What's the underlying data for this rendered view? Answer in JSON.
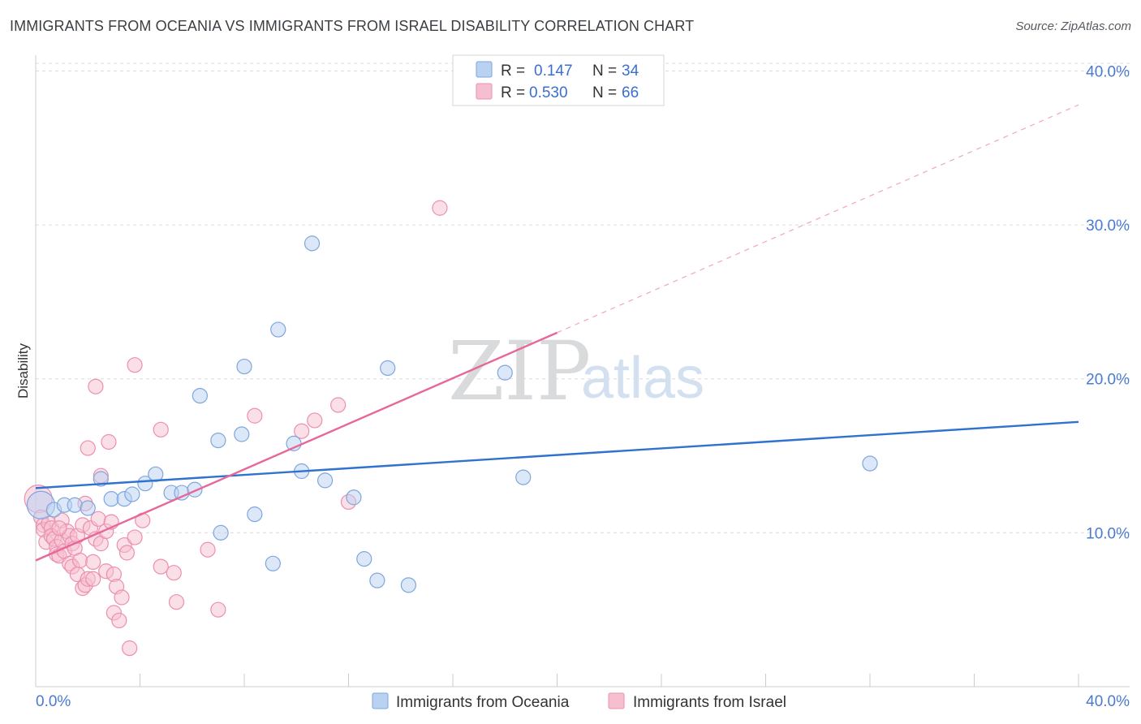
{
  "title": "IMMIGRANTS FROM OCEANIA VS IMMIGRANTS FROM ISRAEL DISABILITY CORRELATION CHART",
  "source": "Source: ZipAtlas.com",
  "watermark": {
    "zip": "ZIP",
    "atlas": "atlas"
  },
  "colors": {
    "blue_fill": "#b9d2f2",
    "blue_stroke": "#7ea6de",
    "blue_line": "#2f72cf",
    "pink_fill": "#f6bfd0",
    "pink_stroke": "#ec8fae",
    "pink_line": "#e8679a",
    "grid": "#dcdcdc",
    "tick_text": "#4a7bd0"
  },
  "chart_data": {
    "type": "scatter",
    "title": "IMMIGRANTS FROM OCEANIA VS IMMIGRANTS FROM ISRAEL DISABILITY CORRELATION CHART",
    "xlabel": "",
    "ylabel": "Disability",
    "xlim": [
      0,
      40
    ],
    "ylim": [
      0,
      40.5
    ],
    "x_tick_labels": [
      "0.0%",
      "40.0%"
    ],
    "y_ticks": [
      10,
      20,
      30,
      40
    ],
    "y_tick_labels": [
      "10.0%",
      "20.0%",
      "30.0%",
      "40.0%"
    ],
    "stats": [
      {
        "r_label": "R =",
        "r_value": "0.147",
        "n_label": "N =",
        "n_value": "34"
      },
      {
        "r_label": "R =",
        "r_value": "0.530",
        "n_label": "N =",
        "n_value": "66"
      }
    ],
    "series": [
      {
        "name": "Immigrants from Oceania",
        "color": "blue",
        "trend": {
          "x0": 0,
          "y0": 12.9,
          "x1": 40,
          "y1": 17.2,
          "solid_until": 40
        },
        "points": [
          [
            0.2,
            11.8
          ],
          [
            0.7,
            11.5
          ],
          [
            1.1,
            11.8
          ],
          [
            1.5,
            11.8
          ],
          [
            2.0,
            11.6
          ],
          [
            2.5,
            13.5
          ],
          [
            2.9,
            12.2
          ],
          [
            3.4,
            12.2
          ],
          [
            3.7,
            12.5
          ],
          [
            4.2,
            13.2
          ],
          [
            4.6,
            13.8
          ],
          [
            5.2,
            12.6
          ],
          [
            5.6,
            12.6
          ],
          [
            6.1,
            12.8
          ],
          [
            6.3,
            18.9
          ],
          [
            7.0,
            16.0
          ],
          [
            7.1,
            10.0
          ],
          [
            7.9,
            16.4
          ],
          [
            8.0,
            20.8
          ],
          [
            8.4,
            11.2
          ],
          [
            9.1,
            8.0
          ],
          [
            9.3,
            23.2
          ],
          [
            9.9,
            15.8
          ],
          [
            10.2,
            14.0
          ],
          [
            10.6,
            28.8
          ],
          [
            11.1,
            13.4
          ],
          [
            12.2,
            12.3
          ],
          [
            12.6,
            8.3
          ],
          [
            13.1,
            6.9
          ],
          [
            13.5,
            20.7
          ],
          [
            14.3,
            6.6
          ],
          [
            18.0,
            20.4
          ],
          [
            18.7,
            13.6
          ],
          [
            32.0,
            14.5
          ]
        ]
      },
      {
        "name": "Immigrants from Israel",
        "color": "pink",
        "trend": {
          "x0": 0,
          "y0": 8.2,
          "x1": 40,
          "y1": 37.8,
          "solid_until": 20
        },
        "points": [
          [
            0.1,
            12.2
          ],
          [
            0.2,
            11.0
          ],
          [
            0.3,
            10.5
          ],
          [
            0.3,
            10.2
          ],
          [
            0.4,
            9.4
          ],
          [
            0.5,
            10.6
          ],
          [
            0.6,
            10.3
          ],
          [
            0.6,
            9.8
          ],
          [
            0.7,
            9.6
          ],
          [
            0.8,
            9.1
          ],
          [
            0.8,
            8.6
          ],
          [
            0.9,
            8.5
          ],
          [
            1.0,
            10.8
          ],
          [
            1.0,
            9.5
          ],
          [
            1.1,
            8.8
          ],
          [
            1.2,
            10.1
          ],
          [
            1.3,
            9.8
          ],
          [
            1.3,
            8.0
          ],
          [
            1.4,
            9.3
          ],
          [
            1.4,
            7.8
          ],
          [
            1.5,
            9.0
          ],
          [
            1.6,
            7.3
          ],
          [
            1.6,
            9.8
          ],
          [
            1.7,
            8.2
          ],
          [
            1.8,
            10.5
          ],
          [
            1.8,
            6.4
          ],
          [
            1.9,
            11.9
          ],
          [
            1.9,
            6.6
          ],
          [
            2.0,
            15.5
          ],
          [
            2.0,
            7.0
          ],
          [
            2.1,
            10.3
          ],
          [
            2.2,
            8.1
          ],
          [
            2.2,
            7.0
          ],
          [
            2.3,
            19.5
          ],
          [
            2.3,
            9.6
          ],
          [
            2.4,
            10.9
          ],
          [
            2.5,
            13.7
          ],
          [
            2.5,
            9.3
          ],
          [
            2.7,
            7.5
          ],
          [
            2.7,
            10.1
          ],
          [
            2.8,
            15.9
          ],
          [
            2.9,
            10.7
          ],
          [
            3.0,
            7.3
          ],
          [
            3.0,
            4.8
          ],
          [
            3.1,
            6.5
          ],
          [
            3.2,
            4.3
          ],
          [
            3.3,
            5.8
          ],
          [
            3.4,
            9.2
          ],
          [
            3.5,
            8.7
          ],
          [
            3.6,
            2.5
          ],
          [
            3.8,
            20.9
          ],
          [
            3.8,
            9.7
          ],
          [
            4.1,
            10.8
          ],
          [
            4.8,
            16.7
          ],
          [
            4.8,
            7.8
          ],
          [
            5.3,
            7.4
          ],
          [
            5.4,
            5.5
          ],
          [
            6.6,
            8.9
          ],
          [
            7.0,
            5.0
          ],
          [
            8.4,
            17.6
          ],
          [
            10.2,
            16.6
          ],
          [
            10.7,
            17.3
          ],
          [
            11.6,
            18.3
          ],
          [
            12.0,
            12.0
          ],
          [
            15.5,
            31.1
          ],
          [
            0.9,
            10.3
          ]
        ]
      }
    ]
  },
  "legend": {
    "items": [
      "Immigrants from Oceania",
      "Immigrants from Israel"
    ]
  }
}
